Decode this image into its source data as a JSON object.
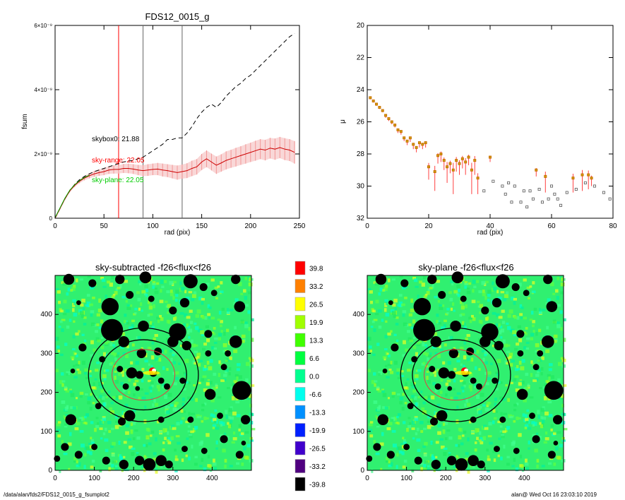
{
  "footer": {
    "path": "/data/alan/fds2/FDS12_0015_g_fsumplot2",
    "user_time": "alan@  Wed Oct 16 23:03:10 2019"
  },
  "colors": {
    "red": "#ff0000",
    "green": "#00cc00",
    "black": "#000000",
    "orange": "#ff8000",
    "gray": "#888888"
  },
  "chart_data": [
    {
      "type": "line",
      "title": "FDS12_0015_g",
      "xlabel": "rad (pix)",
      "ylabel": "fsum",
      "xlim": [
        0,
        250
      ],
      "ylim": [
        0,
        6e-09
      ],
      "xticks": [
        "0",
        "50",
        "100",
        "150",
        "200",
        "250"
      ],
      "yticks": [
        "0",
        "2×10⁻⁹",
        "4×10⁻⁹",
        "6×10⁻⁹"
      ],
      "vlines": [
        {
          "x": 65,
          "color": "red"
        },
        {
          "x": 90,
          "color": "black"
        },
        {
          "x": 130,
          "color": "black"
        }
      ],
      "annotations": [
        {
          "text": "skybox0: 21.88",
          "x": 38,
          "y": 2.45e-09,
          "color": "black"
        },
        {
          "text": "sky-range: 22.05",
          "x": 38,
          "y": 1.8e-09,
          "color": "red"
        },
        {
          "text": "sky-plane: 22.05",
          "x": 38,
          "y": 1.2e-09,
          "color": "green"
        }
      ],
      "series": [
        {
          "style": "dashed",
          "color": "black",
          "x": [
            0,
            5,
            10,
            15,
            20,
            25,
            30,
            35,
            40,
            45,
            50,
            55,
            60,
            65,
            70,
            75,
            80,
            85,
            90,
            95,
            100,
            105,
            110,
            115,
            120,
            125,
            130,
            135,
            140,
            145,
            150,
            155,
            160,
            165,
            170,
            175,
            180,
            185,
            190,
            195,
            200,
            205,
            210,
            215,
            220,
            225,
            230,
            235,
            240,
            245
          ],
          "y": [
            0,
            3e-10,
            6e-10,
            8.5e-10,
            1.05e-09,
            1.2e-09,
            1.3e-09,
            1.38e-09,
            1.45e-09,
            1.5e-09,
            1.55e-09,
            1.6e-09,
            1.65e-09,
            1.7e-09,
            1.75e-09,
            1.78e-09,
            1.8e-09,
            1.85e-09,
            1.9e-09,
            2e-09,
            2.1e-09,
            2.2e-09,
            2.3e-09,
            2.45e-09,
            2.45e-09,
            2.5e-09,
            2.5e-09,
            2.65e-09,
            2.85e-09,
            3.1e-09,
            3.3e-09,
            3.45e-09,
            3.55e-09,
            3.45e-09,
            3.6e-09,
            3.8e-09,
            3.95e-09,
            4.1e-09,
            4.2e-09,
            4.35e-09,
            4.45e-09,
            4.6e-09,
            4.75e-09,
            4.9e-09,
            5.05e-09,
            5.2e-09,
            5.35e-09,
            5.5e-09,
            5.65e-09,
            5.75e-09
          ]
        },
        {
          "style": "solid",
          "color": "red",
          "x": [
            0,
            5,
            10,
            15,
            20,
            25,
            30,
            35,
            40,
            45,
            50,
            55,
            60,
            65,
            70,
            75,
            80,
            85,
            90,
            95,
            100,
            105,
            110,
            115,
            120,
            125,
            130,
            135,
            140,
            145,
            150,
            155,
            160,
            165,
            170,
            175,
            180,
            185,
            190,
            195,
            200,
            205,
            210,
            215,
            220,
            225,
            230,
            235,
            240,
            245
          ],
          "y": [
            0,
            3e-10,
            6e-10,
            8.5e-10,
            1.02e-09,
            1.15e-09,
            1.25e-09,
            1.32e-09,
            1.38e-09,
            1.42e-09,
            1.45e-09,
            1.5e-09,
            1.52e-09,
            1.52e-09,
            1.55e-09,
            1.55e-09,
            1.53e-09,
            1.5e-09,
            1.48e-09,
            1.5e-09,
            1.52e-09,
            1.53e-09,
            1.5e-09,
            1.48e-09,
            1.45e-09,
            1.42e-09,
            1.45e-09,
            1.48e-09,
            1.55e-09,
            1.6e-09,
            1.75e-09,
            1.85e-09,
            1.75e-09,
            1.65e-09,
            1.72e-09,
            1.8e-09,
            1.85e-09,
            1.9e-09,
            1.95e-09,
            2e-09,
            2.05e-09,
            2.1e-09,
            2.15e-09,
            2.12e-09,
            2.18e-09,
            2.15e-09,
            2.2e-09,
            2.15e-09,
            2.12e-09,
            2.05e-09
          ],
          "err": [
            0,
            2e-11,
            3e-11,
            4e-11,
            5e-11,
            6e-11,
            7e-11,
            8e-11,
            9e-11,
            1e-10,
            1.1e-10,
            1.2e-10,
            1.3e-10,
            1.3e-10,
            1.4e-10,
            1.5e-10,
            1.5e-10,
            1.6e-10,
            1.7e-10,
            1.8e-10,
            1.8e-10,
            1.9e-10,
            2e-10,
            2e-10,
            2.1e-10,
            2.2e-10,
            2.2e-10,
            2.3e-10,
            2.4e-10,
            2.4e-10,
            2.5e-10,
            2.6e-10,
            2.6e-10,
            2.7e-10,
            2.7e-10,
            2.8e-10,
            2.8e-10,
            2.9e-10,
            2.9e-10,
            3e-10,
            3e-10,
            3.1e-10,
            3.1e-10,
            3.2e-10,
            3.2e-10,
            3.3e-10,
            3.3e-10,
            3.4e-10,
            3.4e-10,
            3.5e-10
          ]
        }
      ]
    },
    {
      "type": "scatter",
      "xlabel": "rad (pix)",
      "ylabel": "μ",
      "xlim": [
        0,
        80
      ],
      "ylim": [
        32,
        20
      ],
      "xticks": [
        "0",
        "20",
        "40",
        "60",
        "80"
      ],
      "yticks": [
        "20",
        "22",
        "24",
        "26",
        "28",
        "30",
        "32"
      ],
      "series": [
        {
          "marker": "square",
          "x": [
            1,
            2,
            3,
            4,
            5,
            6,
            7,
            8,
            9,
            10,
            11,
            12,
            13,
            14,
            15,
            16,
            17,
            18,
            19,
            20,
            22,
            23,
            24,
            25,
            26,
            27,
            28,
            29,
            30,
            31,
            32,
            33,
            34,
            35,
            36,
            38,
            40,
            41,
            44,
            45,
            46,
            47,
            48,
            50,
            51,
            52,
            53,
            54,
            55,
            56,
            57,
            58,
            59,
            60,
            61,
            62,
            63,
            65,
            67,
            68,
            70,
            71,
            72,
            73,
            74,
            77,
            79
          ],
          "y": [
            24.5,
            24.7,
            24.9,
            25.1,
            25.3,
            25.6,
            25.8,
            26.0,
            26.2,
            26.5,
            26.6,
            27.0,
            27.2,
            27.0,
            27.4,
            27.6,
            27.3,
            27.4,
            27.3,
            28.8,
            29.1,
            28.1,
            28.0,
            28.4,
            28.8,
            28.6,
            29.0,
            28.4,
            28.6,
            28.3,
            28.5,
            28.2,
            29.0,
            28.4,
            29.5,
            30.3,
            28.2,
            29.7,
            30.0,
            30.5,
            29.8,
            31.0,
            30.0,
            31.0,
            30.3,
            31.3,
            30.3,
            30.8,
            29.0,
            30.2,
            31.0,
            29.4,
            30.8,
            30.0,
            30.5,
            30.8,
            31.2,
            30.4,
            29.5,
            30.2,
            29.3,
            29.8,
            29.3,
            29.5,
            30.0,
            30.4,
            30.8
          ],
          "err": [
            0.1,
            0.1,
            0.1,
            0.1,
            0.1,
            0.15,
            0.15,
            0.15,
            0.15,
            0.2,
            0.2,
            0.2,
            0.25,
            0.25,
            0.3,
            0.3,
            0.3,
            0.3,
            0.3,
            0.8,
            1.2,
            0.5,
            0.5,
            0.6,
            1.0,
            0.6,
            1.5,
            0.7,
            0.7,
            0.6,
            0.8,
            0.5,
            1.5,
            0.9,
            1.0,
            0.0,
            0.3,
            0.0,
            0.0,
            0.0,
            0.0,
            0.0,
            0.0,
            0.0,
            0.0,
            0.0,
            0.0,
            0.0,
            0.4,
            0.0,
            0.0,
            1.0,
            0.0,
            0.0,
            0.0,
            0.0,
            0.0,
            0.0,
            0.9,
            0.0,
            1.0,
            0.0,
            0.9,
            0.5,
            0.0,
            0.0,
            0.0
          ]
        }
      ]
    },
    {
      "type": "heatmap",
      "title": "sky-subtracted -f26<flux<f26",
      "xlim": [
        0,
        500
      ],
      "ylim": [
        0,
        500
      ],
      "xticks": [
        "0",
        "100",
        "200",
        "300",
        "400"
      ],
      "yticks": [
        "0",
        "100",
        "200",
        "300",
        "400"
      ]
    },
    {
      "type": "heatmap",
      "title": "sky-plane -f26<flux<f26",
      "xlim": [
        0,
        500
      ],
      "ylim": [
        0,
        500
      ],
      "xticks": [
        "0",
        "100",
        "200",
        "300",
        "400"
      ],
      "yticks": [
        "0",
        "100",
        "200",
        "300",
        "400"
      ]
    }
  ],
  "colorbar": {
    "labels": [
      "39.8",
      "33.2",
      "26.5",
      "19.9",
      "13.3",
      "6.6",
      "0.0",
      "-6.6",
      "-13.3",
      "-19.9",
      "-26.5",
      "-33.2",
      "-39.8"
    ],
    "colors": [
      "#ff0000",
      "#ff8000",
      "#ffff00",
      "#a0ff00",
      "#40ff00",
      "#00ff40",
      "#00ff90",
      "#00ffee",
      "#0090ff",
      "#0020ff",
      "#4000cc",
      "#500080",
      "#000000"
    ]
  },
  "image_features": {
    "ellipses": [
      {
        "cx": 225,
        "cy": 245,
        "rx": 140,
        "ry": 120,
        "color": "black"
      },
      {
        "cx": 225,
        "cy": 245,
        "rx": 110,
        "ry": 90,
        "color": "black"
      },
      {
        "cx": 225,
        "cy": 245,
        "rx": 80,
        "ry": 65,
        "color": "red"
      }
    ],
    "sources": [
      [
        35,
        490,
        14
      ],
      [
        95,
        480,
        10
      ],
      [
        165,
        490,
        12
      ],
      [
        230,
        495,
        15
      ],
      [
        345,
        485,
        18
      ],
      [
        378,
        470,
        10
      ],
      [
        460,
        490,
        12
      ],
      [
        60,
        430,
        6
      ],
      [
        140,
        420,
        22
      ],
      [
        190,
        450,
        10
      ],
      [
        245,
        440,
        8
      ],
      [
        330,
        430,
        12
      ],
      [
        300,
        410,
        10
      ],
      [
        405,
        455,
        8
      ],
      [
        470,
        420,
        14
      ],
      [
        145,
        360,
        28
      ],
      [
        175,
        330,
        14
      ],
      [
        225,
        370,
        14
      ],
      [
        312,
        355,
        22
      ],
      [
        300,
        330,
        14
      ],
      [
        335,
        320,
        12
      ],
      [
        390,
        350,
        10
      ],
      [
        460,
        330,
        16
      ],
      [
        70,
        315,
        10
      ],
      [
        120,
        285,
        8
      ],
      [
        220,
        300,
        12
      ],
      [
        262,
        305,
        10
      ],
      [
        390,
        300,
        8
      ],
      [
        440,
        300,
        8
      ],
      [
        45,
        255,
        6
      ],
      [
        165,
        260,
        8
      ],
      [
        195,
        250,
        14
      ],
      [
        215,
        245,
        10
      ],
      [
        250,
        250,
        10
      ],
      [
        180,
        215,
        8
      ],
      [
        270,
        230,
        8
      ],
      [
        325,
        230,
        8
      ],
      [
        430,
        265,
        8
      ],
      [
        210,
        210,
        6
      ],
      [
        285,
        215,
        8
      ],
      [
        475,
        205,
        24
      ],
      [
        395,
        195,
        14
      ],
      [
        40,
        130,
        14
      ],
      [
        110,
        165,
        8
      ],
      [
        170,
        125,
        10
      ],
      [
        190,
        140,
        14
      ],
      [
        270,
        130,
        8
      ],
      [
        345,
        130,
        8
      ],
      [
        420,
        140,
        8
      ],
      [
        485,
        130,
        12
      ],
      [
        25,
        60,
        10
      ],
      [
        60,
        40,
        10
      ],
      [
        100,
        60,
        8
      ],
      [
        130,
        25,
        10
      ],
      [
        175,
        15,
        12
      ],
      [
        215,
        25,
        12
      ],
      [
        240,
        15,
        16
      ],
      [
        270,
        25,
        14
      ],
      [
        290,
        15,
        10
      ],
      [
        330,
        55,
        8
      ],
      [
        380,
        50,
        8
      ],
      [
        430,
        80,
        10
      ],
      [
        470,
        40,
        10
      ],
      [
        5,
        30,
        8
      ],
      [
        480,
        70,
        6
      ]
    ]
  }
}
